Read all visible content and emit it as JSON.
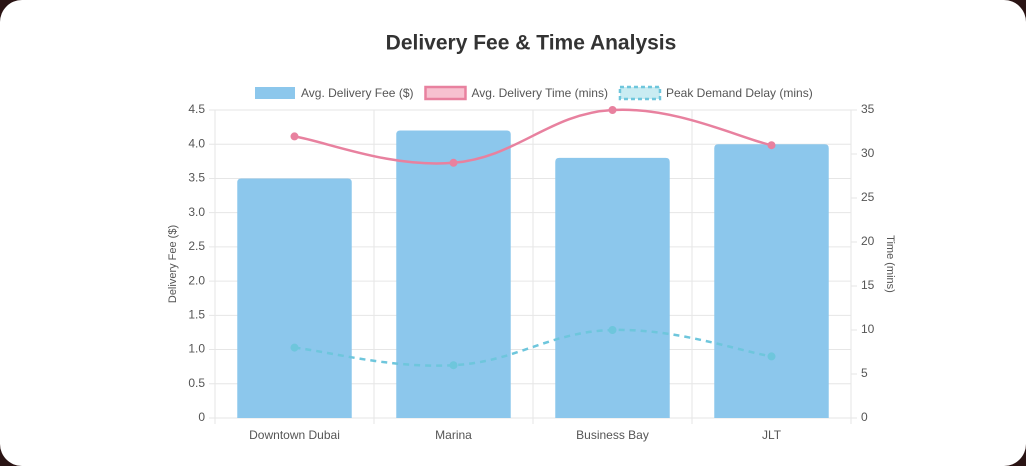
{
  "chart_data": {
    "type": "bar",
    "title": "Delivery Fee & Time Analysis",
    "categories": [
      "Downtown Dubai",
      "Marina",
      "Business Bay",
      "JLT"
    ],
    "series": [
      {
        "name": "Avg. Delivery Fee ($)",
        "type": "bar",
        "color": "#8cc7ec",
        "values": [
          3.5,
          4.2,
          3.8,
          4.0
        ]
      },
      {
        "name": "Avg. Delivery Time (mins)",
        "type": "line",
        "axis": "y2",
        "color": "#e8819f",
        "values": [
          32,
          29,
          35,
          31
        ]
      },
      {
        "name": "Peak Demand Delay (mins)",
        "type": "line",
        "axis": "y2",
        "color": "#6ec6dc",
        "dashed": true,
        "values": [
          8,
          6,
          10,
          7
        ]
      }
    ],
    "y_label": "Delivery Fee ($)",
    "y2_label": "Time (mins)",
    "ylim": [
      0,
      4.5
    ],
    "yticks": [
      0,
      0.5,
      {
        "value": 1,
        "label": "1.0"
      },
      1.5,
      {
        "value": 2,
        "label": "2.0"
      },
      2.5,
      {
        "value": 3,
        "label": "3.0"
      },
      3.5,
      {
        "value": 4,
        "label": "4.0"
      },
      4.5
    ],
    "y2lim": [
      0,
      35
    ],
    "y2ticks": [
      0,
      5,
      10,
      15,
      20,
      25,
      30,
      35
    ],
    "grid": true,
    "legend": "top"
  }
}
